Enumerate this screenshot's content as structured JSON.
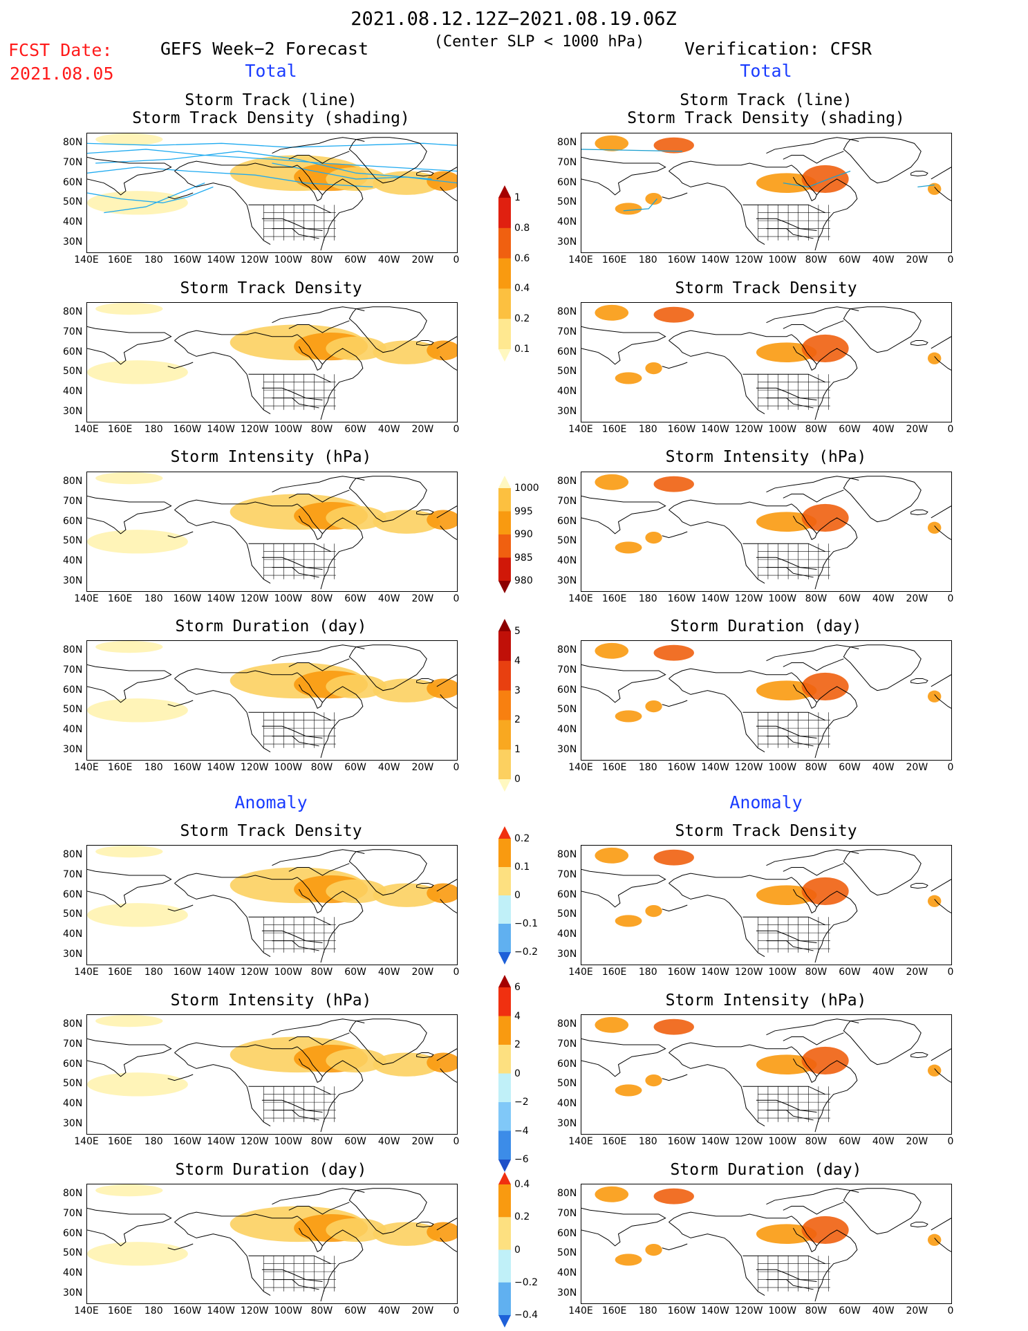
{
  "header": {
    "period": "2021.08.12.12Z−2021.08.19.06Z",
    "criterion": "(Center SLP < 1000 hPa)",
    "fcst_date_label": "FCST Date:",
    "fcst_date_value": "2021.08.05",
    "left_title": "GEFS Week−2 Forecast",
    "right_title": "Verification: CFSR",
    "total_label_left": "Total",
    "total_label_right": "Total",
    "anomaly_label_left": "Anomaly",
    "anomaly_label_right": "Anomaly"
  },
  "axes": {
    "lat_ticks": [
      "80N",
      "70N",
      "60N",
      "50N",
      "40N",
      "30N"
    ],
    "lon_ticks": [
      "140E",
      "160E",
      "180",
      "160W",
      "140W",
      "120W",
      "100W",
      "80W",
      "60W",
      "40W",
      "20W",
      "0"
    ]
  },
  "panels": [
    {
      "title_line1": "Storm Track (line)",
      "title_line2": "Storm Track Density (shading)"
    },
    {
      "title_line1": "Storm Track Density"
    },
    {
      "title_line1": "Storm Intensity (hPa)"
    },
    {
      "title_line1": "Storm Duration (day)"
    },
    {
      "title_line1": "Storm Track Density"
    },
    {
      "title_line1": "Storm Intensity (hPa)"
    },
    {
      "title_line1": "Storm Duration (day)"
    }
  ],
  "colorbars": [
    {
      "name": "track-density",
      "labels": [
        "1",
        "0.8",
        "0.6",
        "0.4",
        "0.2",
        "0.1"
      ],
      "colors": [
        "#a50000",
        "#e02010",
        "#f06010",
        "#f99a10",
        "#fcc040",
        "#ffe890",
        "#fff8c0"
      ]
    },
    {
      "name": "intensity",
      "labels": [
        "1000",
        "995",
        "990",
        "985",
        "980"
      ],
      "colors": [
        "#fff8c0",
        "#fcc040",
        "#f99a10",
        "#f06010",
        "#d01808",
        "#8c0000"
      ]
    },
    {
      "name": "duration",
      "labels": [
        "5",
        "4",
        "3",
        "2",
        "1",
        "0"
      ],
      "colors": [
        "#8c0000",
        "#c01008",
        "#e84010",
        "#f88010",
        "#f9a820",
        "#fcd060",
        "#fff8c0"
      ]
    },
    {
      "name": "density-anomaly",
      "labels": [
        "0.2",
        "0.1",
        "0",
        "−0.1",
        "−0.2"
      ],
      "colors": [
        "#f03010",
        "#f99a10",
        "#fde080",
        "#c0f0f8",
        "#60b0f0",
        "#1e60d8"
      ]
    },
    {
      "name": "intensity-anomaly",
      "labels": [
        "6",
        "4",
        "2",
        "0",
        "−2",
        "−4",
        "−6"
      ],
      "colors": [
        "#a50000",
        "#f03010",
        "#f99a10",
        "#fde080",
        "#c0f0f8",
        "#80c8f8",
        "#3c8ce8",
        "#1e50c8"
      ]
    },
    {
      "name": "duration-anomaly",
      "labels": [
        "0.4",
        "0.2",
        "0",
        "−0.2",
        "−0.4"
      ],
      "colors": [
        "#f03010",
        "#f99a10",
        "#fde080",
        "#c0f0f8",
        "#60b0f0",
        "#1e60d8"
      ]
    }
  ],
  "colors": {
    "fcst_red": "#ff1a1a",
    "section_blue": "#1a3cff",
    "track_line": "#1eaaf0",
    "track_line_verif": "#1ea0d0"
  }
}
